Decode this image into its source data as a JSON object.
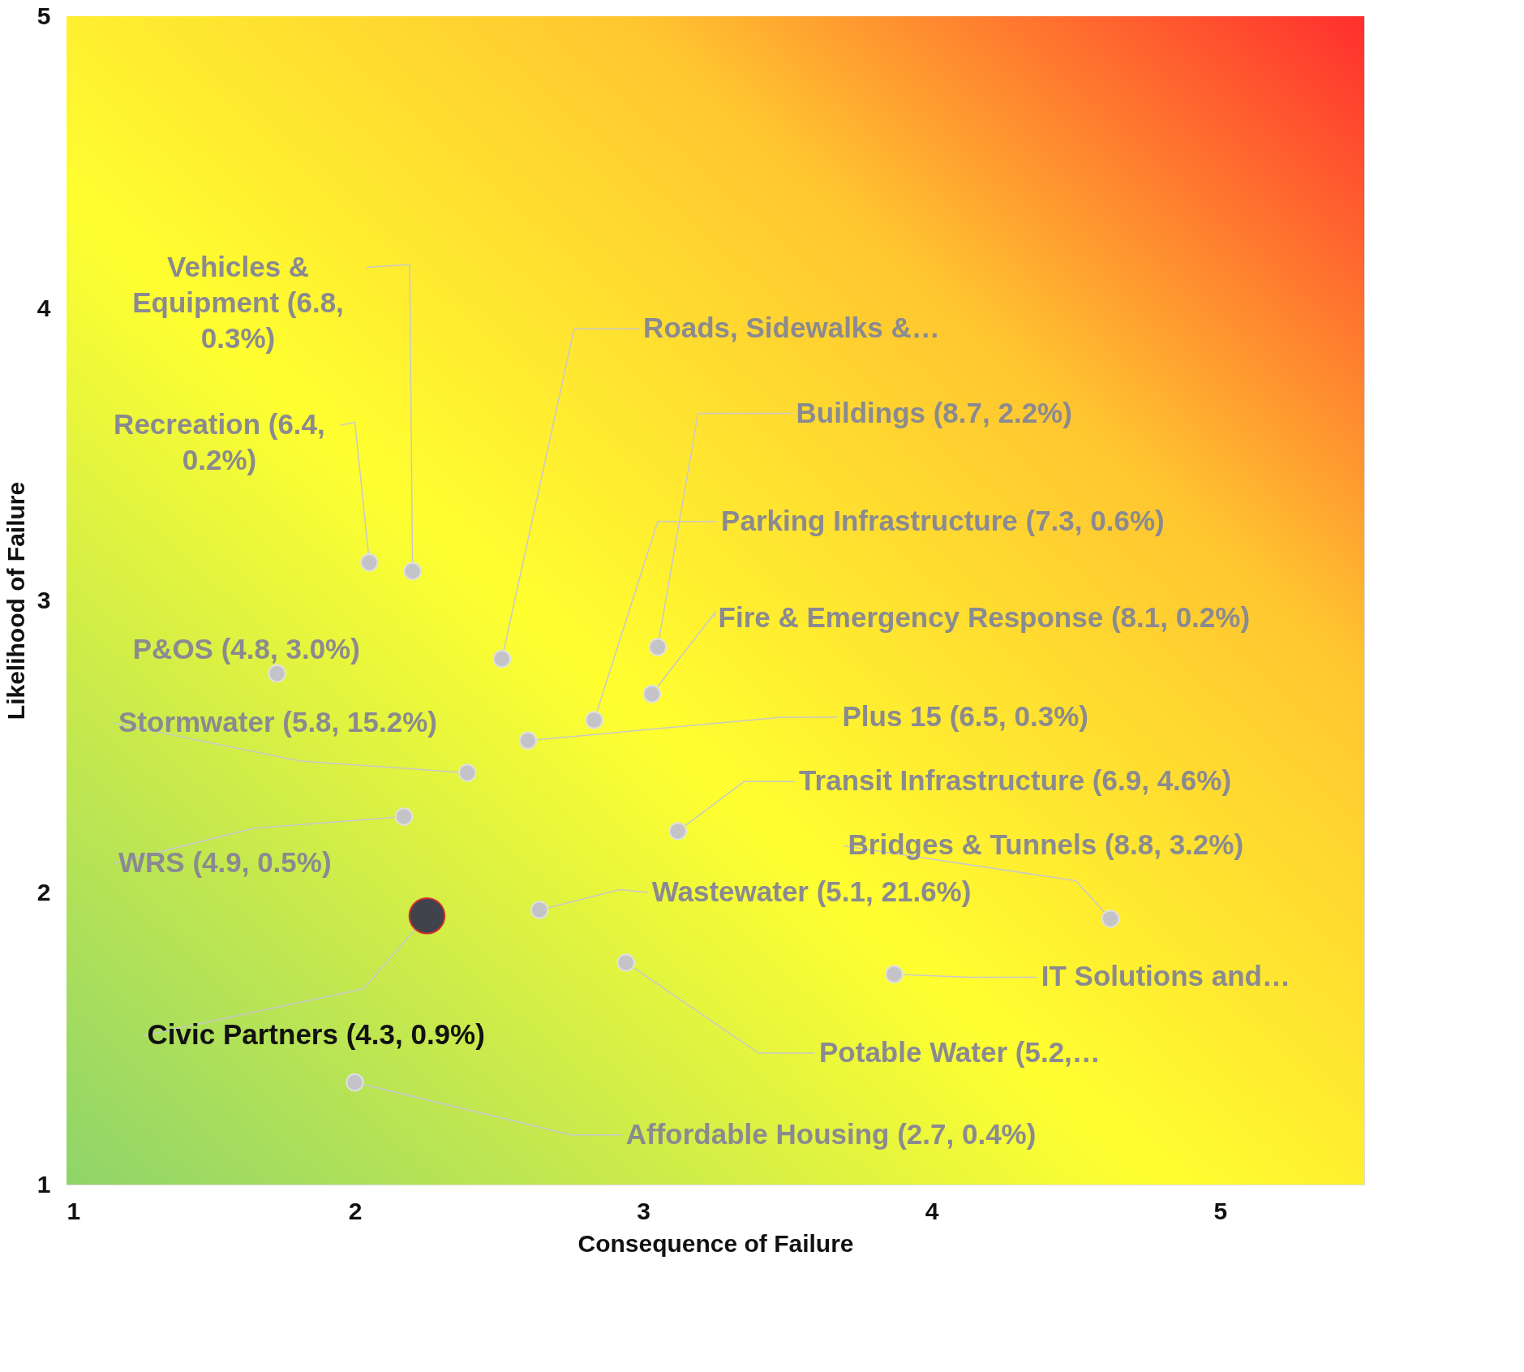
{
  "chart_data": {
    "type": "scatter",
    "xlabel": "Consequence of Failure",
    "ylabel": "Likelihood of Failure",
    "xlim": [
      1,
      5.5
    ],
    "ylim": [
      1,
      5
    ],
    "xticks": [
      1,
      2,
      3,
      4,
      5
    ],
    "yticks": [
      1,
      2,
      3,
      4,
      5
    ],
    "grid": false,
    "legend": false,
    "marker": "circle",
    "series": [
      {
        "color": "#c4c4c8",
        "x": [
          2.2,
          2.05,
          2.51,
          3.05,
          2.83,
          3.03,
          1.73,
          2.39,
          2.6,
          3.12,
          4.62,
          2.17,
          2.64,
          3.87,
          2.94,
          2.0
        ],
        "values": [
          3.1,
          3.13,
          2.8,
          2.84,
          2.59,
          2.68,
          2.75,
          2.41,
          2.52,
          2.21,
          1.91,
          2.26,
          1.94,
          1.72,
          1.76,
          1.35
        ]
      },
      {
        "color": "#40424c",
        "x": [
          2.25
        ],
        "values": [
          1.92
        ]
      }
    ],
    "annotations": [
      {
        "text": "Vehicles &\nEquipment (6.8,\n0.3%)",
        "x": 2.2,
        "y": 3.1
      },
      {
        "text": "Recreation (6.4,\n0.2%)",
        "x": 2.05,
        "y": 3.13
      },
      {
        "text": "Roads, Sidewalks &…",
        "x": 2.51,
        "y": 2.8
      },
      {
        "text": "Buildings (8.7, 2.2%)",
        "x": 3.05,
        "y": 2.84
      },
      {
        "text": "Parking Infrastructure (7.3, 0.6%)",
        "x": 2.83,
        "y": 2.59
      },
      {
        "text": "Fire & Emergency Response  (8.1, 0.2%)",
        "x": 3.03,
        "y": 2.68
      },
      {
        "text": "P&OS (4.8, 3.0%)",
        "x": 1.73,
        "y": 2.75
      },
      {
        "text": "Stormwater (5.8, 15.2%)",
        "x": 2.39,
        "y": 2.41
      },
      {
        "text": "Plus 15 (6.5, 0.3%)",
        "x": 2.6,
        "y": 2.52
      },
      {
        "text": "Transit Infrastructure (6.9, 4.6%)",
        "x": 3.12,
        "y": 2.21
      },
      {
        "text": "Bridges & Tunnels (8.8, 3.2%)",
        "x": 4.62,
        "y": 1.91
      },
      {
        "text": "WRS (4.9, 0.5%)",
        "x": 2.17,
        "y": 2.26
      },
      {
        "text": "Wastewater (5.1, 21.6%)",
        "x": 2.64,
        "y": 1.94
      },
      {
        "text": "IT Solutions and…",
        "x": 3.87,
        "y": 1.72
      },
      {
        "text": "Potable Water (5.2,…",
        "x": 2.94,
        "y": 1.76
      },
      {
        "text": "Affordable Housing (2.7, 0.4%)",
        "x": 2.0,
        "y": 1.35
      },
      {
        "text": "Civic Partners (4.3, 0.9%)",
        "x": 2.25,
        "y": 1.92
      }
    ]
  }
}
